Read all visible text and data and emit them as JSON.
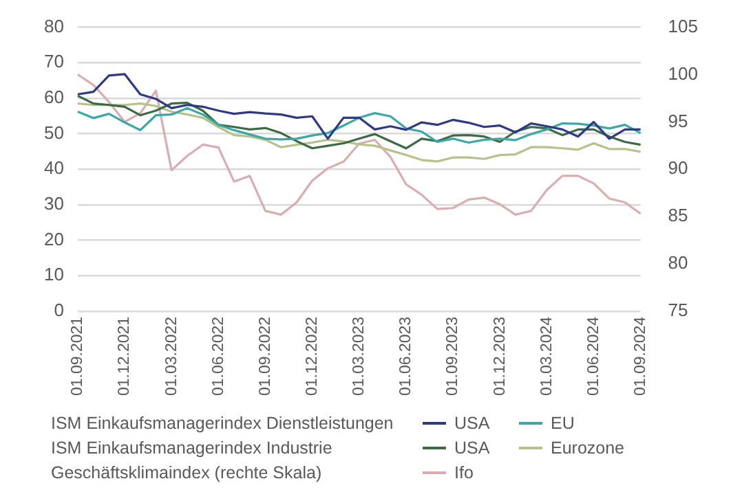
{
  "chart_data": {
    "type": "line",
    "categories": [
      "01.09.2021",
      null,
      null,
      "01.12.2021",
      null,
      null,
      "01.03.2022",
      null,
      null,
      "01.06.2022",
      null,
      null,
      "01.09.2022",
      null,
      null,
      "01.12.2022",
      null,
      null,
      "01.03.2023",
      null,
      null,
      "01.06.2023",
      null,
      null,
      "01.09.2023",
      null,
      null,
      "01.12.2023",
      null,
      null,
      "01.03.2024",
      null,
      null,
      "01.06.2024",
      null,
      null,
      "01.09.2024"
    ],
    "series": [
      {
        "name": "USA",
        "color": "#2e3a87",
        "values": [
          61.1,
          61.8,
          66.4,
          66.8,
          61.1,
          59.8,
          57.2,
          58.1,
          57.6,
          56.5,
          55.6,
          56.1,
          55.7,
          55.4,
          54.5,
          54.9,
          48.6,
          54.5,
          54.5,
          51.2,
          52.1,
          51.1,
          53.2,
          52.5,
          53.9,
          53.1,
          51.9,
          52.3,
          50.4,
          52.9,
          52.1,
          51.2,
          49.2,
          53.3,
          48.6,
          51.2,
          51.2
        ]
      },
      {
        "name": "EU",
        "color": "#3ba8a8",
        "values": [
          56.2,
          54.4,
          55.6,
          53.2,
          51.0,
          55.2,
          55.4,
          57.2,
          55.4,
          52.5,
          51.0,
          49.8,
          48.6,
          48.4,
          48.6,
          49.5,
          50.2,
          52.3,
          54.5,
          55.8,
          54.9,
          51.5,
          50.6,
          47.7,
          48.6,
          47.5,
          48.3,
          48.6,
          48.2,
          49.9,
          51.2,
          52.9,
          52.8,
          52.3,
          51.5,
          52.5,
          50.2
        ]
      },
      {
        "name": "USA",
        "color": "#3a6b45",
        "values": [
          60.7,
          58.5,
          58.1,
          57.6,
          55.2,
          56.5,
          58.5,
          58.7,
          56.5,
          52.5,
          51.9,
          51.2,
          51.6,
          50.2,
          47.9,
          45.9,
          46.6,
          47.3,
          48.6,
          49.9,
          47.9,
          45.9,
          48.6,
          47.9,
          49.5,
          49.6,
          49.2,
          47.7,
          50.6,
          51.9,
          51.5,
          49.6,
          51.2,
          51.2,
          49.2,
          47.7,
          46.9
        ]
      },
      {
        "name": "Eurozone",
        "color": "#b5c28a",
        "values": [
          58.5,
          58.1,
          58.1,
          58.1,
          58.5,
          57.8,
          56.2,
          55.4,
          54.5,
          51.9,
          49.6,
          49.2,
          48.3,
          46.2,
          46.9,
          47.5,
          48.3,
          47.8,
          47.0,
          46.6,
          45.3,
          44.0,
          42.6,
          42.2,
          43.3,
          43.3,
          42.9,
          44.0,
          44.2,
          46.2,
          46.2,
          45.9,
          45.5,
          47.3,
          45.7,
          45.7,
          44.9
        ]
      },
      {
        "name": "Ifo",
        "color": "#d9aeb0",
        "axis": "y2",
        "values": [
          100.0,
          98.9,
          97.1,
          95.0,
          95.9,
          98.3,
          89.9,
          91.4,
          92.6,
          92.3,
          88.7,
          89.3,
          85.6,
          85.2,
          86.5,
          88.8,
          90.1,
          90.8,
          92.7,
          93.1,
          91.3,
          88.4,
          87.3,
          85.8,
          85.9,
          86.8,
          87.0,
          86.3,
          85.2,
          85.6,
          87.8,
          89.3,
          89.3,
          88.5,
          86.9,
          86.5,
          85.3
        ]
      }
    ],
    "ylim": [
      0,
      80
    ],
    "yticks": [
      0,
      10,
      20,
      30,
      40,
      50,
      60,
      70,
      80
    ],
    "y2lim": [
      75,
      105
    ],
    "y2ticks": [
      75,
      80,
      85,
      90,
      95,
      100,
      105
    ],
    "grid": "y",
    "legend": "bottom",
    "marker": "none",
    "line_style": "solid",
    "annotations": [
      "ISM Einkaufsmanagerindex Dienstleistungen",
      "ISM Einkaufsmanagerindex Industrie",
      "Geschäftsklimaindex (rechte Skala)"
    ]
  }
}
